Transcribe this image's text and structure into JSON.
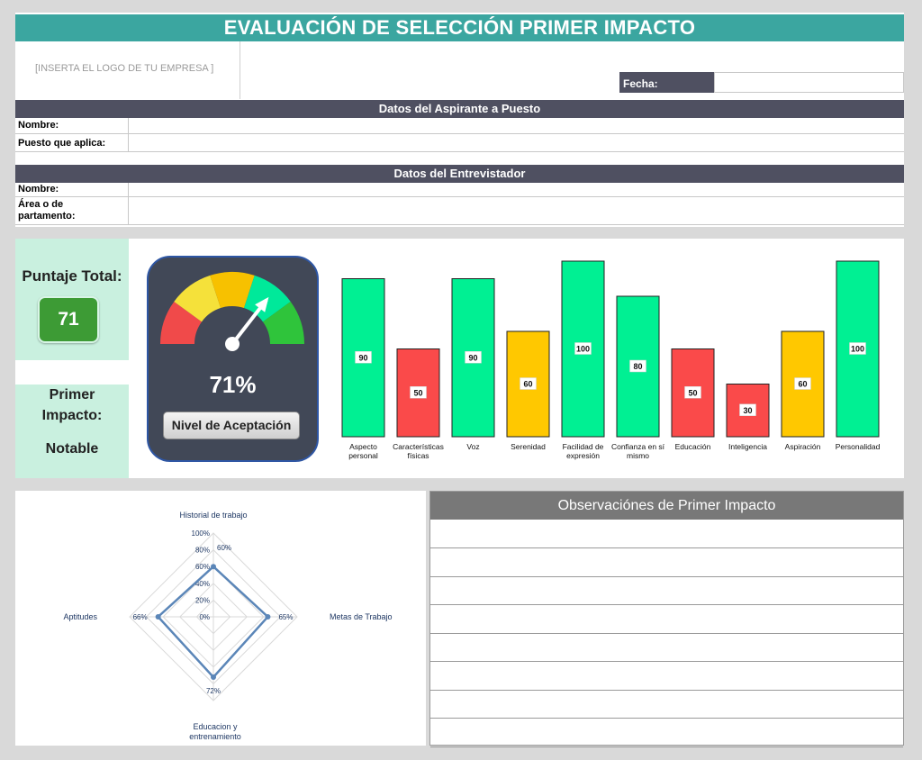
{
  "title": "EVALUACIÓN DE SELECCIÓN PRIMER IMPACTO",
  "logo_placeholder": "[INSERTA EL LOGO DE TU EMPRESA ]",
  "fecha_label": "Fecha:",
  "aspirante": {
    "header": "Datos del Aspirante a Puesto",
    "nombre_label": "Nombre:",
    "puesto_label": "Puesto que aplica:"
  },
  "entrevistador": {
    "header": "Datos del Entrevistador",
    "nombre_label": "Nombre:",
    "area_label_1": "Área o de",
    "area_label_2": "partamento:"
  },
  "score": {
    "label": "Puntaje Total:",
    "value": "71"
  },
  "impact": {
    "title_1": "Primer",
    "title_2": "Impacto:",
    "value": "Notable"
  },
  "gauge": {
    "percent_label": "71%",
    "value": 71,
    "button_label": "Nivel de Aceptación",
    "zone_colors": [
      "#f04a4a",
      "#f5e13a",
      "#f7c100",
      "#00e99a",
      "#2fc43b"
    ]
  },
  "chart_data": [
    {
      "type": "bar",
      "categories": [
        "Aspecto personal",
        "Características físicas",
        "Voz",
        "Serenidad",
        "Facilidad de expresión",
        "Confianza en sí mismo",
        "Educación",
        "Inteligencia",
        "Aspiración",
        "Personalidad"
      ],
      "values": [
        90,
        50,
        90,
        60,
        100,
        80,
        50,
        30,
        60,
        100
      ],
      "bar_colors": [
        "#00f093",
        "#fa4a4a",
        "#00f093",
        "#ffc800",
        "#00f093",
        "#00f093",
        "#fa4a4a",
        "#fa4a4a",
        "#ffc800",
        "#00f093"
      ],
      "ylim": [
        0,
        100
      ],
      "grid": false,
      "data_labels": true
    },
    {
      "type": "radar",
      "categories": [
        "Historial de trabajo",
        "Metas de Trabajo",
        "Educacion y entrenamiento",
        "Aptitudes"
      ],
      "values": [
        60,
        65,
        72,
        66
      ],
      "value_labels": [
        "60%",
        "65%",
        "72%",
        "66%"
      ],
      "axis_ticks": [
        "0%",
        "20%",
        "40%",
        "60%",
        "80%",
        "100%"
      ],
      "rlim": [
        0,
        100
      ],
      "line_color": "#5b86b8"
    }
  ],
  "observaciones": {
    "header": "Observaciónes de Primer Impacto",
    "line_count": 8
  }
}
